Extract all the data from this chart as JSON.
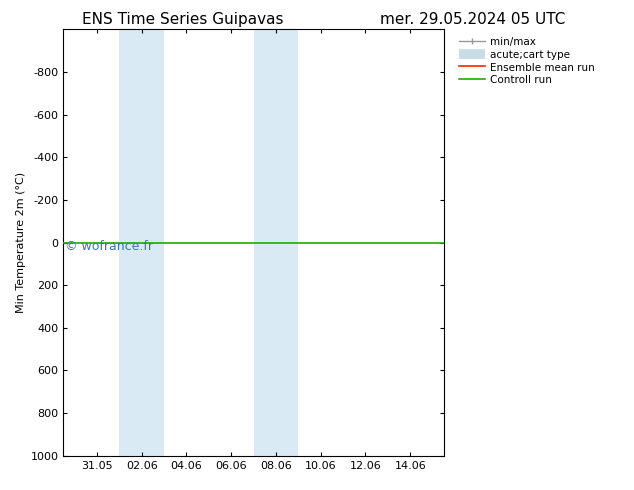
{
  "title_left": "ENS Time Series Guipavas",
  "title_right": "mer. 29.05.2024 05 UTC",
  "ylabel": "Min Temperature 2m (°C)",
  "ylim_bottom": 1000,
  "ylim_top": -1000,
  "yticks": [
    -800,
    -600,
    -400,
    -200,
    0,
    200,
    400,
    600,
    800,
    1000
  ],
  "ytick_labels": [
    "-800",
    "-600",
    "-400",
    "-200",
    "0",
    "200",
    "400",
    "600",
    "800",
    "1000"
  ],
  "xtick_labels": [
    "31.05",
    "02.06",
    "04.06",
    "06.06",
    "08.06",
    "10.06",
    "12.06",
    "14.06"
  ],
  "xtick_positions": [
    2,
    4,
    6,
    8,
    10,
    12,
    14,
    16
  ],
  "xlim_left": 0.5,
  "xlim_right": 17.5,
  "green_line_y": 0,
  "shaded_bands": [
    {
      "x_start": 3.0,
      "x_end": 5.0
    },
    {
      "x_start": 9.0,
      "x_end": 11.0
    }
  ],
  "shade_color": "#daeaf5",
  "watermark_text": "© wofrance.fr",
  "watermark_color": "#3377bb",
  "legend_labels": [
    "min/max",
    "acute;cart type",
    "Ensemble mean run",
    "Controll run"
  ],
  "legend_line_color": "#999999",
  "legend_band_color": "#c8dce8",
  "legend_red_color": "#ff2200",
  "legend_green_color": "#22aa00",
  "background_color": "#ffffff",
  "border_color": "#000000",
  "title_fontsize": 11,
  "tick_fontsize": 8,
  "ylabel_fontsize": 8
}
